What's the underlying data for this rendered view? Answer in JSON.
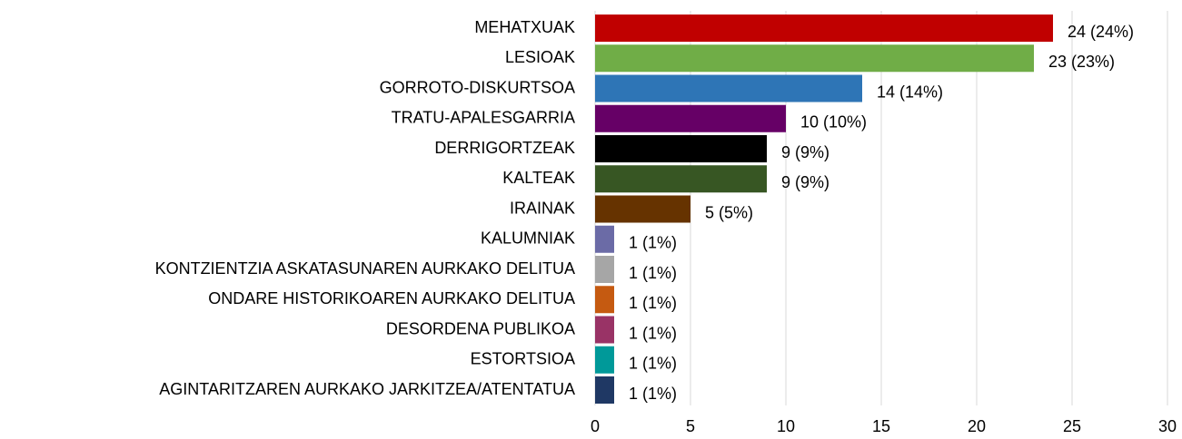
{
  "chart_data": {
    "type": "hbar",
    "categories": [
      "MEHATXUAK",
      "LESIOAK",
      "GORROTO-DISKURTSOA",
      "TRATU-APALESGARRIA",
      "DERRIGORTZEAK",
      "KALTEAK",
      "IRAINAK",
      "KALUMNIAK",
      "KONTZIENTZIA ASKATASUNAREN AURKAKO DELITUA",
      "ONDARE HISTORIKOAREN AURKAKO DELITUA",
      "DESORDENA PUBLIKOA",
      "ESTORTSIOA",
      "AGINTARITZAREN AURKAKO JARKITZEA/ATENTATUA"
    ],
    "values": [
      24,
      23,
      14,
      10,
      9,
      9,
      5,
      1,
      1,
      1,
      1,
      1,
      1
    ],
    "value_labels": [
      "24 (24%)",
      "23 (23%)",
      "14 (14%)",
      "10 (10%)",
      "9 (9%)",
      "9 (9%)",
      "5 (5%)",
      "1 (1%)",
      "1 (1%)",
      "1 (1%)",
      "1 (1%)",
      "1 (1%)",
      "1 (1%)"
    ],
    "colors": [
      "#c00000",
      "#70ad47",
      "#2e75b6",
      "#660066",
      "#000000",
      "#375623",
      "#663300",
      "#6b6ba6",
      "#a6a6a6",
      "#c55a11",
      "#993366",
      "#009999",
      "#1f3864"
    ],
    "xlim": [
      0,
      30
    ],
    "xticks": [
      0,
      5,
      10,
      15,
      20,
      25,
      30
    ],
    "grid": true
  }
}
